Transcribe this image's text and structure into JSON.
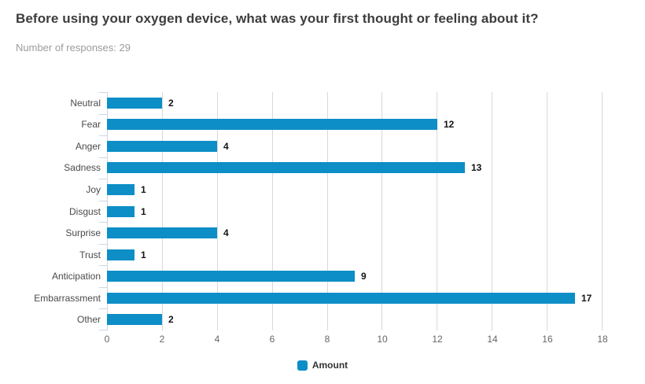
{
  "header": {
    "title": "Before using your oxygen device, what was your first thought or feeling about it?",
    "subtitle": "Number of responses: 29"
  },
  "chart_data": {
    "type": "bar",
    "orientation": "horizontal",
    "title": "Before using your oxygen device, what was your first thought or feeling about it?",
    "subtitle": "Number of responses: 29",
    "categories": [
      "Neutral",
      "Fear",
      "Anger",
      "Sadness",
      "Joy",
      "Disgust",
      "Surprise",
      "Trust",
      "Anticipation",
      "Embarrassment",
      "Other"
    ],
    "series": [
      {
        "name": "Amount",
        "values": [
          2,
          12,
          4,
          13,
          1,
          1,
          4,
          1,
          9,
          17,
          2
        ]
      }
    ],
    "xlabel": "",
    "ylabel": "",
    "xlim": [
      0,
      18
    ],
    "x_ticks": [
      0,
      2,
      4,
      6,
      8,
      10,
      12,
      14,
      16,
      18
    ],
    "grid": true,
    "data_labels": true,
    "legend_position": "bottom",
    "bar_color": "#0d8ec7"
  },
  "legend": {
    "label": "Amount",
    "color": "#0d8ec7"
  }
}
